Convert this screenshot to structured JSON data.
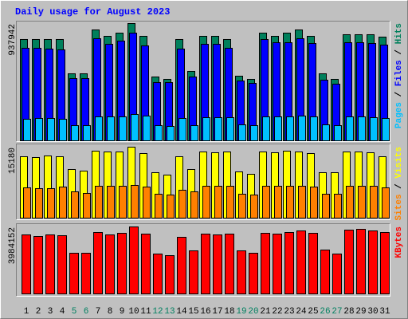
{
  "chart_data": [
    {
      "type": "bar",
      "title": "Daily usage for August 2023",
      "legend_separator": " / ",
      "ylim": [
        0,
        937942
      ],
      "yticks": [
        937942
      ],
      "series": [
        {
          "name": "Hits",
          "color": "#00805c",
          "values": [
            810387,
            810387,
            810387,
            810387,
            536004,
            536004,
            886959,
            835911,
            861435,
            937942,
            835911,
            510480,
            491337,
            810387,
            555147,
            835911,
            835911,
            810387,
            516861,
            491337,
            861435,
            835911,
            861435,
            886959,
            835911,
            536004,
            491337,
            848673,
            848673,
            848673,
            829530
          ]
        },
        {
          "name": "Files",
          "color": "#0000ff",
          "values": [
            740196,
            740196,
            733815,
            727434,
            497718,
            497718,
            816768,
            772101,
            797625,
            861435,
            759339,
            465813,
            465813,
            733815,
            510480,
            772101,
            772101,
            740196,
            478575,
            459432,
            810387,
            784863,
            784863,
            816768,
            778482,
            484956,
            453051,
            784863,
            784863,
            778482,
            765720
          ]
        },
        {
          "name": "Pages",
          "color": "#00c0ff",
          "values": [
            172287,
            178668,
            178668,
            172287,
            121239,
            121239,
            191430,
            191430,
            191430,
            210573,
            197811,
            121239,
            114858,
            178668,
            121239,
            185049,
            185049,
            185049,
            127620,
            121239,
            191430,
            191430,
            191430,
            197811,
            191430,
            127620,
            121239,
            191430,
            191430,
            185049,
            178668
          ]
        }
      ]
    },
    {
      "type": "bar",
      "ylim": [
        0,
        15180
      ],
      "yticks": [
        15180
      ],
      "series": [
        {
          "name": "Visits",
          "color": "#ffff00",
          "values": [
            13133,
            12963,
            13304,
            13133,
            10404,
            10063,
            14327,
            14156,
            14156,
            15180,
            13815,
            9722,
            9210,
            13133,
            10404,
            14156,
            13986,
            14156,
            9892,
            9381,
            14156,
            13986,
            14327,
            14156,
            13815,
            9722,
            9722,
            14156,
            14156,
            13986,
            13133
          ]
        },
        {
          "name": "Sites",
          "color": "#ff8000",
          "values": [
            6481,
            6311,
            6311,
            6652,
            5628,
            5287,
            6822,
            6822,
            6822,
            6993,
            6652,
            5117,
            4946,
            5970,
            5628,
            6822,
            6822,
            6822,
            5117,
            4946,
            6822,
            6822,
            6822,
            6822,
            6652,
            5117,
            5117,
            6822,
            6822,
            6822,
            6481
          ]
        }
      ]
    },
    {
      "type": "bar",
      "ylim": [
        0,
        3984152
      ],
      "yticks": [
        3984152
      ],
      "categories": [
        "1",
        "2",
        "3",
        "4",
        "5",
        "6",
        "7",
        "8",
        "9",
        "10",
        "11",
        "12",
        "13",
        "14",
        "15",
        "16",
        "17",
        "18",
        "19",
        "20",
        "21",
        "22",
        "23",
        "24",
        "25",
        "26",
        "27",
        "28",
        "29",
        "30",
        "31"
      ],
      "category_colors": [
        "#000000",
        "#000000",
        "#000000",
        "#000000",
        "#008060",
        "#008060",
        "#000000",
        "#000000",
        "#000000",
        "#000000",
        "#000000",
        "#008060",
        "#008060",
        "#000000",
        "#000000",
        "#000000",
        "#000000",
        "#000000",
        "#008060",
        "#008060",
        "#000000",
        "#000000",
        "#000000",
        "#000000",
        "#000000",
        "#008060",
        "#008060",
        "#000000",
        "#000000",
        "#000000",
        "#000000"
      ],
      "series": [
        {
          "name": "KBytes",
          "color": "#ff0000",
          "values": [
            3509820,
            3414960,
            3509820,
            3462390,
            2418930,
            2418930,
            3652110,
            3509820,
            3604680,
            3984152,
            3557250,
            2371500,
            2276640,
            3367530,
            2561220,
            3557250,
            3509820,
            3557250,
            2561220,
            2418930,
            3604680,
            3557250,
            3652110,
            3746970,
            3604680,
            2608650,
            2371500,
            3794400,
            3841830,
            3746970,
            3652110
          ]
        }
      ]
    }
  ]
}
